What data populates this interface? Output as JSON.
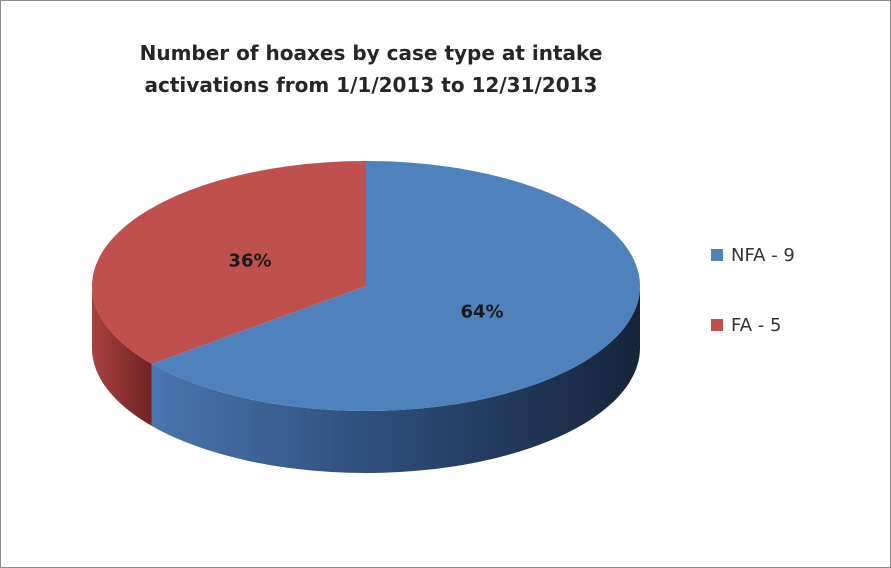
{
  "colors": {
    "nfa": "#4f81bd",
    "nfa_dark": "#1f3250",
    "fa": "#c0504d",
    "fa_dark": "#6e2322"
  },
  "chart_data": {
    "type": "pie",
    "style": "3d",
    "title_lines": [
      "Number of hoaxes by case type at intake",
      "activations from 1/1/2013 to 12/31/2013"
    ],
    "slices": [
      {
        "label": "NFA - 9",
        "value": 9,
        "percent_label": "64%",
        "color": "#4f81bd"
      },
      {
        "label": "FA - 5",
        "value": 5,
        "percent_label": "36%",
        "color": "#c0504d"
      }
    ],
    "legend_position": "right"
  }
}
